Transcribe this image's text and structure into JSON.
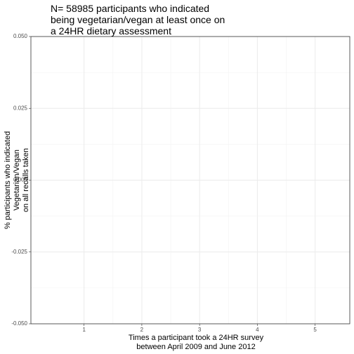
{
  "chart_data": {
    "type": "scatter",
    "title": [
      "N= 58985 participants who indicated",
      "being vegetarian/vegan at least once on",
      "a 24HR dietary assessment"
    ],
    "xlabel": [
      "Times a participant took a 24HR survey",
      "between April 2009 and June 2012"
    ],
    "ylabel": [
      "% participants who indicated",
      "Vegetarian/Vegan",
      "on all recalls taken"
    ],
    "x": [],
    "values": [],
    "xlim": [
      0.08,
      5.6
    ],
    "xticks": [
      1,
      2,
      3,
      4,
      5
    ],
    "xminorticks": [
      1.5,
      2.5,
      3.5,
      4.5
    ],
    "ylim": [
      -0.05,
      0.05
    ],
    "yticks": [
      {
        "value": -0.05,
        "label": "-0.050"
      },
      -0.025,
      {
        "value": 0,
        "label": "0.000"
      },
      0.025,
      {
        "value": 0.05,
        "label": "0.050"
      }
    ],
    "yminorticks": [
      -0.0375,
      -0.0125,
      0.0125,
      0.0375
    ],
    "grid": true
  }
}
